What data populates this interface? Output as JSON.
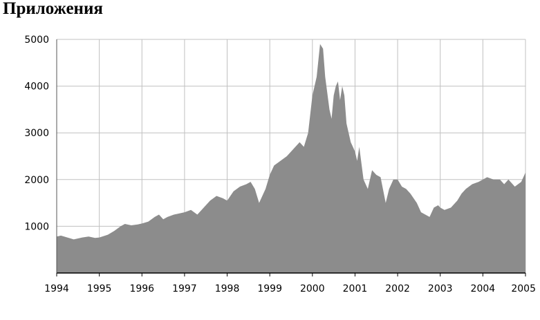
{
  "heading": "Приложения",
  "chart_data": {
    "type": "area",
    "title": "",
    "xlabel": "",
    "ylabel": "",
    "xlim": [
      1994,
      2005
    ],
    "ylim": [
      0,
      5000
    ],
    "x_ticks": [
      "1994",
      "1995",
      "1996",
      "1997",
      "1998",
      "1999",
      "2000",
      "2001",
      "2002",
      "2003",
      "2004",
      "2005"
    ],
    "y_ticks": [
      "1000",
      "2000",
      "3000",
      "4000",
      "5000"
    ],
    "grid": true,
    "legend": "none",
    "colors": {
      "fill": "#8c8c8c",
      "grid": "#c0c0c0",
      "axis": "#000000"
    },
    "x": [
      1994.0,
      1994.1,
      1994.25,
      1994.4,
      1994.5,
      1994.6,
      1994.75,
      1994.9,
      1995.0,
      1995.2,
      1995.35,
      1995.5,
      1995.6,
      1995.75,
      1995.9,
      1996.0,
      1996.15,
      1996.3,
      1996.4,
      1996.5,
      1996.6,
      1996.75,
      1996.9,
      1997.0,
      1997.15,
      1997.3,
      1997.45,
      1997.6,
      1997.75,
      1997.9,
      1998.0,
      1998.15,
      1998.3,
      1998.45,
      1998.55,
      1998.65,
      1998.75,
      1998.9,
      1999.0,
      1999.1,
      1999.25,
      1999.4,
      1999.5,
      1999.6,
      1999.7,
      1999.8,
      1999.9,
      2000.0,
      2000.1,
      2000.18,
      2000.25,
      2000.3,
      2000.4,
      2000.45,
      2000.5,
      2000.55,
      2000.6,
      2000.65,
      2000.7,
      2000.75,
      2000.8,
      2000.9,
      2001.0,
      2001.05,
      2001.1,
      2001.2,
      2001.3,
      2001.4,
      2001.5,
      2001.6,
      2001.72,
      2001.8,
      2001.9,
      2002.0,
      2002.1,
      2002.2,
      2002.3,
      2002.45,
      2002.55,
      2002.65,
      2002.75,
      2002.85,
      2002.95,
      2003.0,
      2003.1,
      2003.25,
      2003.4,
      2003.5,
      2003.6,
      2003.75,
      2003.9,
      2004.0,
      2004.1,
      2004.25,
      2004.4,
      2004.5,
      2004.6,
      2004.75,
      2004.9,
      2005.0
    ],
    "y": [
      780,
      800,
      760,
      720,
      740,
      760,
      780,
      750,
      760,
      820,
      900,
      1000,
      1050,
      1020,
      1040,
      1060,
      1100,
      1200,
      1250,
      1150,
      1200,
      1250,
      1280,
      1300,
      1350,
      1250,
      1400,
      1550,
      1650,
      1600,
      1550,
      1750,
      1850,
      1900,
      1950,
      1800,
      1500,
      1800,
      2100,
      2300,
      2400,
      2500,
      2600,
      2700,
      2800,
      2700,
      3000,
      3800,
      4200,
      4900,
      4800,
      4200,
      3500,
      3300,
      3800,
      4000,
      4100,
      3700,
      4000,
      3800,
      3200,
      2800,
      2600,
      2400,
      2700,
      2000,
      1800,
      2200,
      2100,
      2050,
      1500,
      1800,
      2000,
      2000,
      1850,
      1800,
      1700,
      1500,
      1300,
      1250,
      1200,
      1400,
      1450,
      1400,
      1350,
      1400,
      1550,
      1700,
      1800,
      1900,
      1950,
      2000,
      2050,
      2000,
      2000,
      1900,
      2000,
      1850,
      1950,
      2150
    ]
  }
}
